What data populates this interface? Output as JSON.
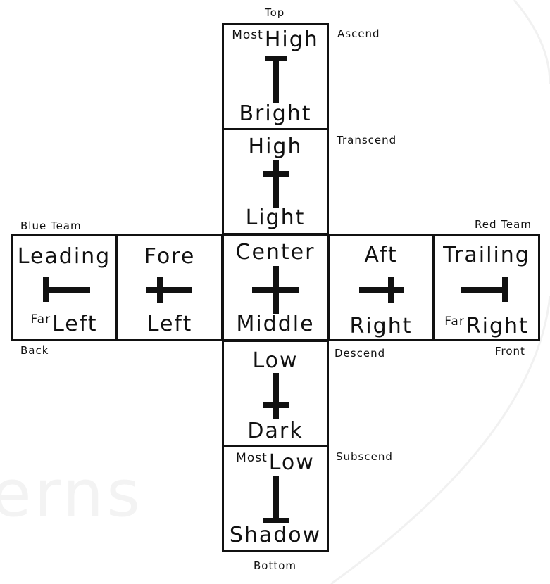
{
  "watermark": "erns",
  "labels": {
    "top": "Top",
    "ascend": "Ascend",
    "transcend": "Transcend",
    "blue_team": "Blue Team",
    "red_team": "Red Team",
    "back": "Back",
    "descend": "Descend",
    "front": "Front",
    "subscend": "Subscend",
    "bottom": "Bottom"
  },
  "cells": {
    "most_high": {
      "sup": "Most",
      "top": "High",
      "bottom": "Bright"
    },
    "high": {
      "top": "High",
      "bottom": "Light"
    },
    "leading": {
      "top": "Leading",
      "sup": "Far",
      "bottom": "Left"
    },
    "fore": {
      "top": "Fore",
      "bottom": "Left"
    },
    "center": {
      "top": "Center",
      "bottom": "Middle"
    },
    "aft": {
      "top": "Aft",
      "bottom": "Right"
    },
    "trailing": {
      "top": "Trailing",
      "sup": "Far",
      "bottom": "Right"
    },
    "low": {
      "top": "Low",
      "bottom": "Dark"
    },
    "most_low": {
      "sup": "Most",
      "top": "Low",
      "bottom": "Shadow"
    }
  },
  "colors": {
    "stroke": "#111111",
    "background": "#ffffff",
    "watermark": "#f3f3f3"
  }
}
